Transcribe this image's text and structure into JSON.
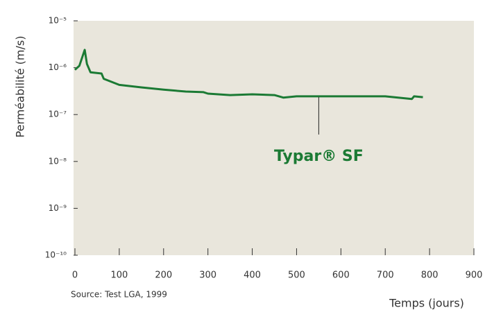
{
  "chart_data": {
    "type": "line",
    "x_label": "Temps (jours)",
    "y_label": "Perméabilité (m/s)",
    "source": "Source: Test LGA, 1999",
    "annotation": {
      "text": "Typar® SF",
      "x": 550
    },
    "x": [
      0,
      10,
      22,
      27,
      35,
      60,
      65,
      100,
      150,
      200,
      250,
      290,
      300,
      350,
      400,
      450,
      470,
      500,
      600,
      700,
      760,
      765,
      785
    ],
    "series": [
      {
        "name": "Typar® SF",
        "color": "#1b7a34",
        "values": [
          9e-07,
          1.1e-06,
          2.4e-06,
          1.2e-06,
          8e-07,
          7.5e-07,
          5.8e-07,
          4.3e-07,
          3.8e-07,
          3.4e-07,
          3.1e-07,
          3e-07,
          2.8e-07,
          2.6e-07,
          2.7e-07,
          2.6e-07,
          2.3e-07,
          2.45e-07,
          2.45e-07,
          2.45e-07,
          2.15e-07,
          2.45e-07,
          2.35e-07
        ]
      }
    ],
    "xlim": [
      0,
      900
    ],
    "xticks": [
      0,
      100,
      200,
      300,
      400,
      500,
      600,
      700,
      800,
      900
    ],
    "ylim": [
      1e-10,
      1e-05
    ],
    "log_y": true,
    "yticks": [
      {
        "value": 1e-10,
        "label": "10⁻¹⁰"
      },
      {
        "value": 1e-09,
        "label": "10⁻⁹"
      },
      {
        "value": 1e-08,
        "label": "10⁻⁸"
      },
      {
        "value": 1e-07,
        "label": "10⁻⁷"
      },
      {
        "value": 1e-06,
        "label": "10⁻⁶"
      },
      {
        "value": 1e-05,
        "label": "10⁻⁵"
      }
    ],
    "plot_background": "#e9e6dc"
  }
}
